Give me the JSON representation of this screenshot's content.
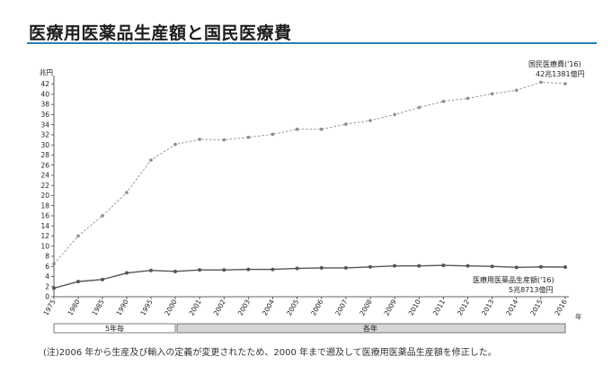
{
  "title": "医療用医薬品生産額と国民医療費",
  "note": "(注)2006 年から生産及び輸入の定義が変更されたため、2000 年まで遡及して医療用医薬品生産額を修正した。",
  "chart_data": {
    "type": "line",
    "ylabel": "兆円",
    "xunit": "年",
    "ylim": [
      0,
      43
    ],
    "yticks": [
      0,
      2,
      4,
      6,
      8,
      10,
      12,
      14,
      16,
      18,
      20,
      22,
      24,
      26,
      28,
      30,
      32,
      34,
      36,
      38,
      40,
      42
    ],
    "x": [
      "1975",
      "1980",
      "1985",
      "1990",
      "1995",
      "2000",
      "2001",
      "2002",
      "2003",
      "2004",
      "2005",
      "2006",
      "2007",
      "2008",
      "2009",
      "2010",
      "2011",
      "2012",
      "2013",
      "2014",
      "2015",
      "2016"
    ],
    "series": [
      {
        "values": [
          6.5,
          12.0,
          16.0,
          20.6,
          27.0,
          30.1,
          31.1,
          31.0,
          31.5,
          32.1,
          33.1,
          33.1,
          34.1,
          34.8,
          36.0,
          37.4,
          38.6,
          39.2,
          40.1,
          40.8,
          42.4,
          42.1
        ],
        "color": "#8c8c8c",
        "style": "dashed"
      },
      {
        "values": [
          1.7,
          3.0,
          3.4,
          4.7,
          5.2,
          5.0,
          5.3,
          5.3,
          5.4,
          5.4,
          5.6,
          5.7,
          5.7,
          5.9,
          6.1,
          6.1,
          6.2,
          6.1,
          6.0,
          5.8,
          5.9,
          5.87
        ],
        "color": "#555555",
        "style": "solid"
      }
    ],
    "annotations": {
      "expenditure_name": "国民医療費('16)",
      "expenditure_value": "42兆1381億円",
      "production_name": "医療用医薬品生産額('16)",
      "production_value": "5兆8713億円"
    },
    "bands": [
      {
        "label": "5年毎"
      },
      {
        "label": "各年"
      }
    ],
    "grid": false
  }
}
